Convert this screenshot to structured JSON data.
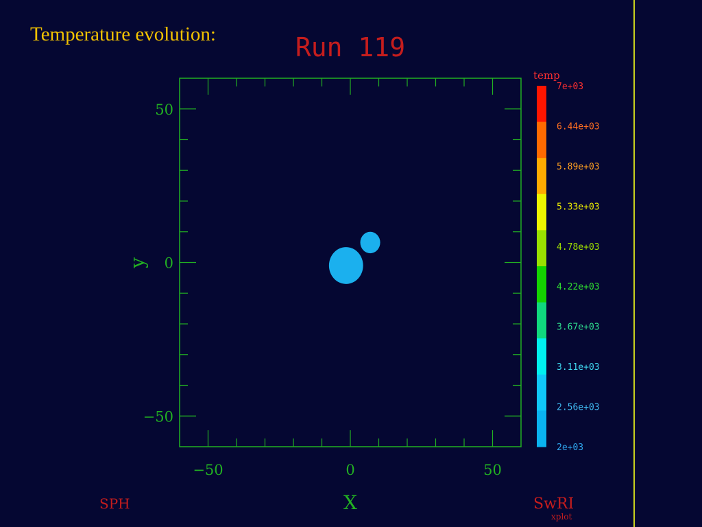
{
  "slide": {
    "title": "Temperature evolution:"
  },
  "colors": {
    "background": "#050732",
    "title": "#f2c200",
    "axis": "#22b022",
    "run_title": "#c51d1d",
    "footer": "#c51d1d",
    "blob": "#1bb0ee",
    "rule": "#c9d21e"
  },
  "chart_data": {
    "type": "scatter",
    "title": "Run 119",
    "xlabel": "X",
    "ylabel": "y",
    "xlim": [
      -60,
      60
    ],
    "ylim": [
      -60,
      60
    ],
    "xticks": [
      -50,
      0,
      50
    ],
    "yticks": [
      -50,
      0,
      50
    ],
    "xtick_labels": [
      "−50",
      "0",
      "50"
    ],
    "ytick_labels": [
      "−50",
      "0",
      "50"
    ],
    "grid": false,
    "points": [
      {
        "x": -1.5,
        "y": -1,
        "radius": 6,
        "value": 2000
      },
      {
        "x": 7,
        "y": 6.5,
        "radius": 3.5,
        "value": 2000
      }
    ],
    "colorbar": {
      "title": "temp",
      "labels": [
        "7e+03",
        "6.44e+03",
        "5.89e+03",
        "5.33e+03",
        "4.78e+03",
        "4.22e+03",
        "3.67e+03",
        "3.11e+03",
        "2.56e+03",
        "2e+03"
      ],
      "colors": [
        "#ff1500",
        "#ff6a00",
        "#ffab00",
        "#eef500",
        "#9ae000",
        "#14d300",
        "#10d87e",
        "#00f0f0",
        "#10c8f8",
        "#0ab3f0"
      ],
      "label_colors": [
        "#ff3030",
        "#ff7020",
        "#ffa020",
        "#f0f000",
        "#a0e000",
        "#30e030",
        "#30e090",
        "#40d8f0",
        "#40b8f0",
        "#30a8f0"
      ]
    },
    "footer": {
      "left": "SPH",
      "right": "SwRI",
      "right_sub": "xplot"
    }
  }
}
